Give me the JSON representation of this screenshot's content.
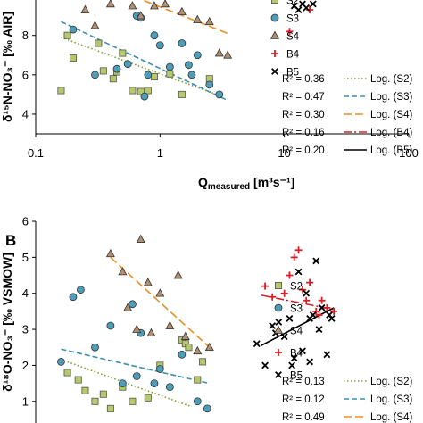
{
  "panels": [
    {
      "id": "A",
      "panel_label": "",
      "chart_data": {
        "type": "scatter",
        "xscale": "log",
        "xlim": [
          0.1,
          100
        ],
        "ylim": [
          3,
          9.8
        ],
        "yticks": [
          4,
          6,
          8
        ],
        "xticks": [
          0.1,
          1,
          10,
          100
        ],
        "xtick_labels": [
          "0.1",
          "1",
          "10",
          "100"
        ],
        "xlabel_main": "Q",
        "xlabel_sub": "measured",
        "xlabel_unit": " [m³s⁻¹]",
        "ylabel": "δ¹⁵N-NO₃⁻ [‰ AIR]",
        "legend_position": "right",
        "series": [
          {
            "name": "S2",
            "marker": "square",
            "color": "#b5c96a",
            "stroke": "#555555",
            "points": [
              [
                0.18,
                8.0
              ],
              [
                0.2,
                6.85
              ],
              [
                0.32,
                7.6
              ],
              [
                0.35,
                6.2
              ],
              [
                0.42,
                5.8
              ],
              [
                0.45,
                6.15
              ],
              [
                0.5,
                7.1
              ],
              [
                0.6,
                5.2
              ],
              [
                0.7,
                5.15
              ],
              [
                0.8,
                5.2
              ],
              [
                0.16,
                5.2
              ],
              [
                0.9,
                5.9
              ],
              [
                1.5,
                5.0
              ],
              [
                2.5,
                5.8
              ],
              [
                1.2,
                6.05
              ]
            ]
          },
          {
            "name": "S3",
            "marker": "circle",
            "color": "#4e9db8",
            "stroke": "#333333",
            "points": [
              [
                0.2,
                8.3
              ],
              [
                0.3,
                6.0
              ],
              [
                0.45,
                6.3
              ],
              [
                0.55,
                6.55
              ],
              [
                0.65,
                9.0
              ],
              [
                0.7,
                8.9
              ],
              [
                0.8,
                6.0
              ],
              [
                0.9,
                8.0
              ],
              [
                1.0,
                7.5
              ],
              [
                1.2,
                6.4
              ],
              [
                1.5,
                7.6
              ],
              [
                1.7,
                6.5
              ],
              [
                2.0,
                7.0
              ],
              [
                1.8,
                6.0
              ],
              [
                2.5,
                5.5
              ],
              [
                3.0,
                5.0
              ],
              [
                0.75,
                4.9
              ]
            ]
          },
          {
            "name": "S4",
            "marker": "triangle",
            "color": "#b09070",
            "stroke": "#333333",
            "points": [
              [
                0.25,
                9.3
              ],
              [
                0.3,
                8.5
              ],
              [
                0.4,
                9.6
              ],
              [
                0.6,
                9.5
              ],
              [
                0.7,
                9.0
              ],
              [
                0.9,
                9.5
              ],
              [
                1.1,
                9.6
              ],
              [
                1.5,
                9.2
              ],
              [
                2.0,
                8.8
              ],
              [
                2.5,
                8.7
              ],
              [
                3.0,
                7.1
              ],
              [
                3.5,
                7.0
              ]
            ]
          },
          {
            "name": "B4",
            "marker": "plus",
            "color": "#d62028",
            "points": [
              [
                11,
                8.2
              ],
              [
                16,
                9.3
              ]
            ]
          },
          {
            "name": "B5",
            "marker": "x",
            "color": "#000000",
            "points": [
              [
                12,
                9.5
              ],
              [
                13,
                9.3
              ],
              [
                14,
                9.6
              ],
              [
                15,
                9.4
              ],
              [
                17,
                9.6
              ]
            ]
          }
        ],
        "fits": [
          {
            "series": "S2",
            "r2": "R² = 0.36",
            "label": "Log. (S2)",
            "color": "#7fa02c",
            "dash": "1.5,2.5",
            "x": [
              0.16,
              3.0
            ],
            "y": [
              7.9,
              4.95
            ]
          },
          {
            "series": "S3",
            "r2": "R² = 0.47",
            "label": "Log. (S3)",
            "color": "#3d8fb0",
            "dash": "6,3",
            "x": [
              0.16,
              3.5
            ],
            "y": [
              8.7,
              4.7
            ]
          },
          {
            "series": "S4",
            "r2": "R² = 0.30",
            "label": "Log. (S4)",
            "color": "#e8902a",
            "dash": "9,4",
            "x": [
              0.5,
              3.5
            ],
            "y": [
              10.2,
              8.1
            ]
          },
          {
            "series": "B4",
            "r2": "R² = 0.16",
            "label": "Log. (B4)",
            "color": "#c8282e",
            "dash": "9,3,2,3",
            "x": [],
            "y": []
          },
          {
            "series": "B5",
            "r2": "R² = 0.20",
            "label": "Log. (B5)",
            "color": "#000000",
            "dash": "",
            "x": [],
            "y": []
          }
        ]
      }
    },
    {
      "id": "B",
      "panel_label": "B",
      "chart_data": {
        "type": "scatter",
        "xscale": "log",
        "xlim": [
          0.1,
          100
        ],
        "ylim": [
          0.4,
          6
        ],
        "yticks": [
          1,
          2,
          3,
          4,
          5,
          6
        ],
        "ylabel": "δ¹⁸O-NO₃⁻ [‰ VSMOW]",
        "legend_position": "right",
        "series": [
          {
            "name": "S2",
            "marker": "square",
            "color": "#b5c96a",
            "stroke": "#555555",
            "points": [
              [
                0.18,
                1.8
              ],
              [
                0.22,
                1.6
              ],
              [
                0.25,
                1.3
              ],
              [
                0.3,
                1.0
              ],
              [
                0.35,
                1.2
              ],
              [
                0.4,
                0.8
              ],
              [
                0.5,
                1.4
              ],
              [
                0.6,
                1.0
              ],
              [
                0.8,
                1.1
              ],
              [
                1.0,
                2.0
              ],
              [
                1.5,
                2.7
              ],
              [
                1.6,
                2.6
              ],
              [
                1.7,
                2.5
              ],
              [
                2.0,
                1.6
              ],
              [
                2.2,
                2.1
              ]
            ]
          },
          {
            "name": "S3",
            "marker": "circle",
            "color": "#4e9db8",
            "stroke": "#333333",
            "points": [
              [
                0.16,
                2.1
              ],
              [
                0.2,
                3.9
              ],
              [
                0.23,
                4.1
              ],
              [
                0.3,
                2.5
              ],
              [
                0.4,
                3.1
              ],
              [
                0.5,
                1.5
              ],
              [
                0.6,
                3.7
              ],
              [
                0.65,
                1.7
              ],
              [
                0.7,
                2.9
              ],
              [
                0.9,
                1.5
              ],
              [
                1.0,
                1.9
              ],
              [
                1.2,
                1.4
              ],
              [
                1.5,
                2.3
              ],
              [
                2.0,
                1.0
              ],
              [
                2.4,
                0.8
              ]
            ]
          },
          {
            "name": "S4",
            "marker": "triangle",
            "color": "#b09070",
            "stroke": "#333333",
            "points": [
              [
                0.4,
                5.1
              ],
              [
                0.5,
                4.6
              ],
              [
                0.55,
                3.6
              ],
              [
                0.65,
                3.0
              ],
              [
                0.7,
                5.5
              ],
              [
                0.8,
                4.3
              ],
              [
                0.85,
                2.9
              ],
              [
                1.0,
                4.0
              ],
              [
                1.2,
                3.1
              ],
              [
                1.4,
                4.5
              ],
              [
                1.6,
                2.8
              ],
              [
                2.5,
                2.5
              ],
              [
                2.0,
                2.4
              ]
            ]
          },
          {
            "name": "B4",
            "marker": "plus",
            "color": "#d62028",
            "points": [
              [
                7,
                4.2
              ],
              [
                8,
                3.9
              ],
              [
                10,
                4.0
              ],
              [
                11,
                4.5
              ],
              [
                12,
                5.0
              ],
              [
                13,
                5.2
              ],
              [
                14,
                4.1
              ],
              [
                15,
                3.8
              ],
              [
                16,
                4.3
              ],
              [
                18,
                3.5
              ],
              [
                19,
                3.4
              ],
              [
                20,
                3.8
              ],
              [
                22,
                3.6
              ],
              [
                25,
                3.5
              ]
            ]
          },
          {
            "name": "B5",
            "marker": "x",
            "color": "#000000",
            "points": [
              [
                6,
                2.6
              ],
              [
                7,
                2.0
              ],
              [
                8,
                3.1
              ],
              [
                8.5,
                2.9
              ],
              [
                9,
                3.2
              ],
              [
                10,
                2.8
              ],
              [
                11,
                3.3
              ],
              [
                11.5,
                2.0
              ],
              [
                12,
                2.2
              ],
              [
                13,
                4.6
              ],
              [
                14,
                2.4
              ],
              [
                15,
                4.0
              ],
              [
                16,
                3.3
              ],
              [
                17,
                3.4
              ],
              [
                18,
                4.9
              ],
              [
                19,
                3.0
              ],
              [
                20,
                3.6
              ],
              [
                22,
                2.3
              ],
              [
                23,
                3.4
              ],
              [
                24,
                3.3
              ],
              [
                16,
                2.1
              ]
            ]
          }
        ],
        "fits": [
          {
            "series": "S2",
            "r2": "R² = 0.13",
            "label": "Log. (S2)",
            "color": "#7fa02c",
            "dash": "1.5,2.5",
            "x": [
              0.18,
              1.8
            ],
            "y": [
              2.1,
              0.85
            ]
          },
          {
            "series": "S3",
            "r2": "R² = 0.12",
            "label": "Log. (S3)",
            "color": "#3d8fb0",
            "dash": "6,3",
            "x": [
              0.16,
              2.5
            ],
            "y": [
              2.45,
              1.5
            ]
          },
          {
            "series": "S4",
            "r2": "R² = 0.49",
            "label": "Log. (S4)",
            "color": "#e8902a",
            "dash": "9,4",
            "x": [
              0.4,
              2.5
            ],
            "y": [
              5.0,
              2.5
            ]
          },
          {
            "series": "B4",
            "r2": "",
            "label": "",
            "color": "#c8282e",
            "dash": "9,3,2,3",
            "x": [
              6.5,
              25
            ],
            "y": [
              3.95,
              3.55
            ]
          },
          {
            "series": "B5",
            "r2": "",
            "label": "",
            "color": "#000000",
            "dash": "",
            "x": [
              6.5,
              25
            ],
            "y": [
              2.55,
              3.6
            ]
          }
        ]
      }
    }
  ]
}
